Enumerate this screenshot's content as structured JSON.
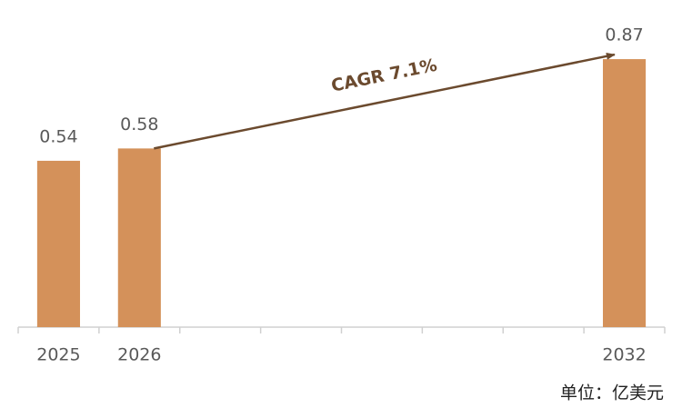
{
  "chart_data": {
    "type": "bar",
    "categories": [
      "2025",
      "2026",
      null,
      null,
      null,
      null,
      null,
      "2032"
    ],
    "values": [
      0.54,
      0.58,
      null,
      null,
      null,
      null,
      null,
      0.87
    ],
    "color": "#d4915a",
    "ylim": [
      0,
      1
    ],
    "annotation": "CAGR 7.1%",
    "unit_label": "单位：亿美元"
  }
}
